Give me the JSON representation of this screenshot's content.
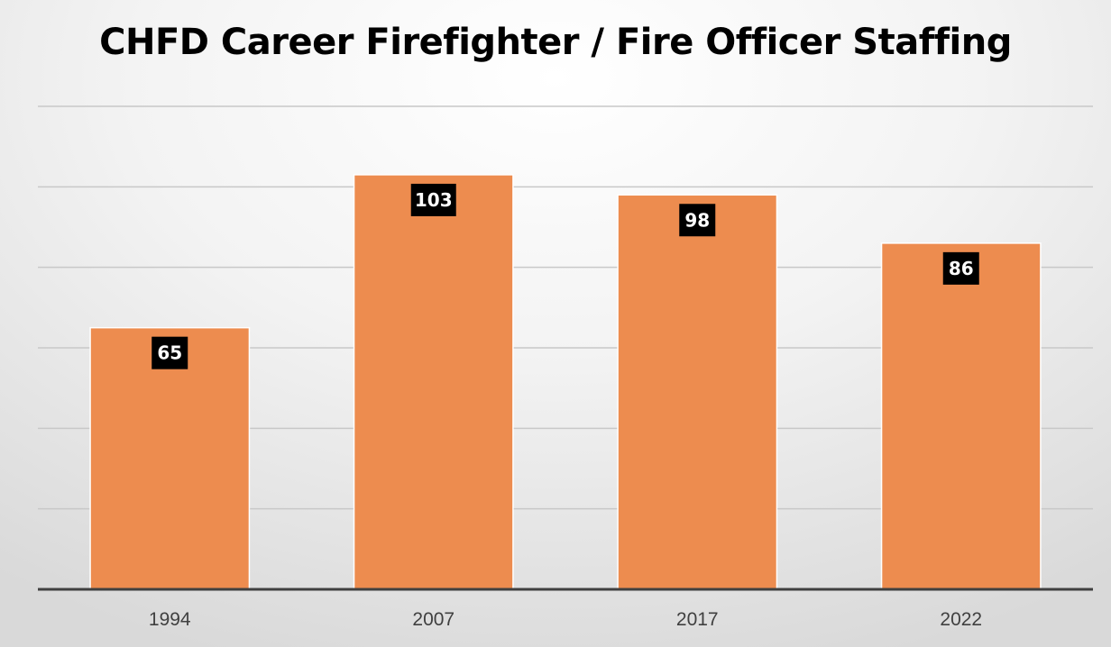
{
  "chart_data": {
    "type": "bar",
    "title": "CHFD Career Firefighter / Fire Officer Staffing",
    "categories": [
      "1994",
      "2007",
      "2017",
      "2022"
    ],
    "values": [
      65,
      103,
      98,
      86
    ],
    "ylim": [
      0,
      120
    ],
    "xlabel": "",
    "ylabel": "",
    "grid": true,
    "legend": "none",
    "data_labels": [
      "65",
      "103",
      "98",
      "86"
    ],
    "colors": {
      "bar": "#ED8C4F",
      "bar_edge": "#FFFFFF",
      "data_label_bg": "#000000",
      "data_label_text": "#FFFFFF",
      "gridline": "#C8C8C8",
      "axis": "#404040"
    }
  }
}
